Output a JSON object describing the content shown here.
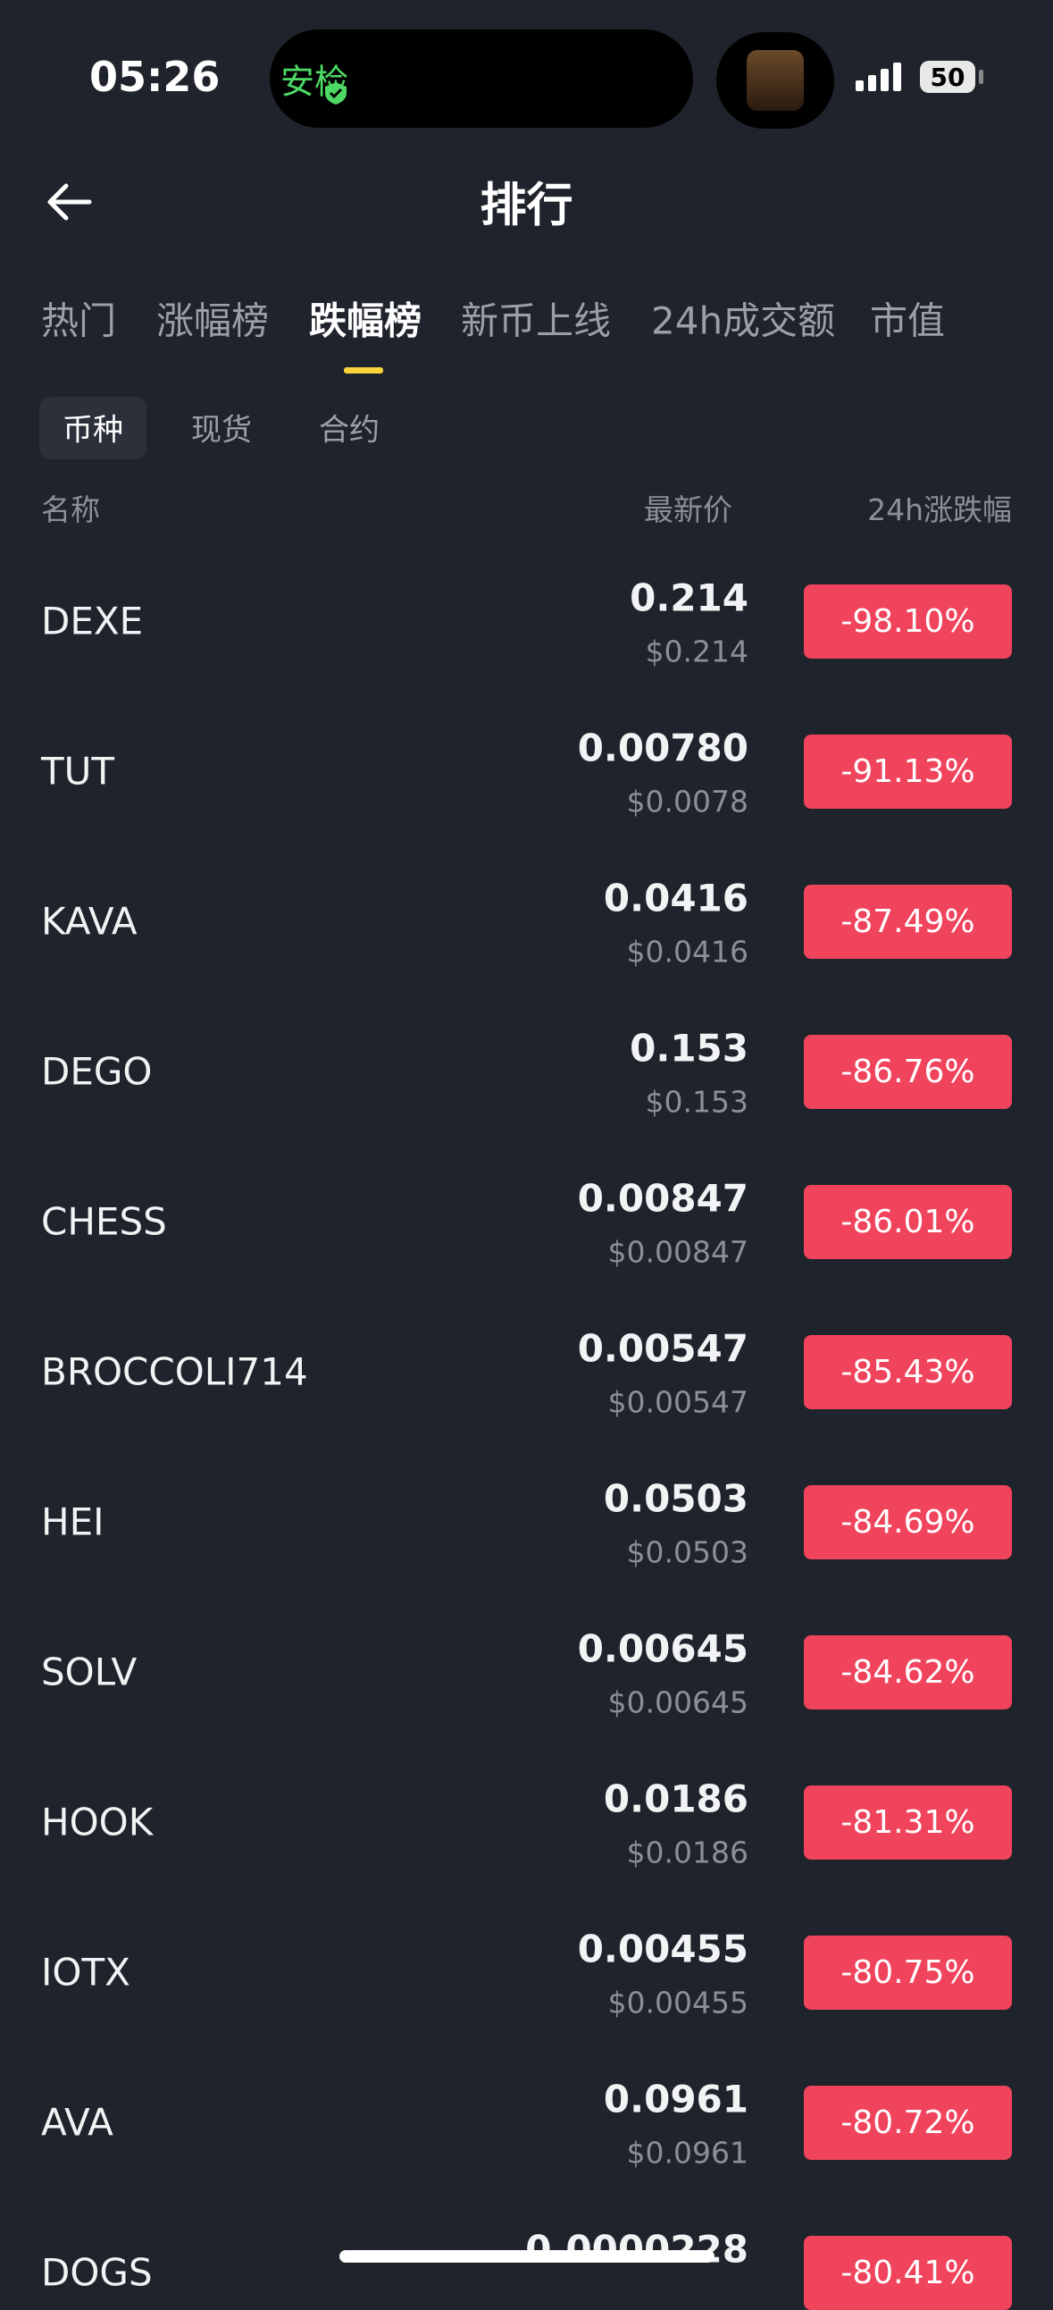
{
  "status_bar": {
    "time": "05:26",
    "security": "安检",
    "battery": "50"
  },
  "header": {
    "title": "排行"
  },
  "tabs": [
    "热门",
    "涨幅榜",
    "跌幅榜",
    "新币上线",
    "24h成交额",
    "市值"
  ],
  "subtabs": [
    "币种",
    "现货",
    "合约"
  ],
  "columns": [
    "名称",
    "最新价",
    "24h涨跌幅"
  ],
  "rows": [
    {
      "name": "DEXE",
      "price": "0.214",
      "usd": "$0.214",
      "change": "-98.10%"
    },
    {
      "name": "TUT",
      "price": "0.00780",
      "usd": "$0.0078",
      "change": "-91.13%"
    },
    {
      "name": "KAVA",
      "price": "0.0416",
      "usd": "$0.0416",
      "change": "-87.49%"
    },
    {
      "name": "DEGO",
      "price": "0.153",
      "usd": "$0.153",
      "change": "-86.76%"
    },
    {
      "name": "CHESS",
      "price": "0.00847",
      "usd": "$0.00847",
      "change": "-86.01%"
    },
    {
      "name": "BROCCOLI714",
      "price": "0.00547",
      "usd": "$0.00547",
      "change": "-85.43%"
    },
    {
      "name": "HEI",
      "price": "0.0503",
      "usd": "$0.0503",
      "change": "-84.69%"
    },
    {
      "name": "SOLV",
      "price": "0.00645",
      "usd": "$0.00645",
      "change": "-84.62%"
    },
    {
      "name": "HOOK",
      "price": "0.0186",
      "usd": "$0.0186",
      "change": "-81.31%"
    },
    {
      "name": "IOTX",
      "price": "0.00455",
      "usd": "$0.00455",
      "change": "-80.75%"
    },
    {
      "name": "AVA",
      "price": "0.0961",
      "usd": "$0.0961",
      "change": "-80.72%"
    },
    {
      "name": "DOGS",
      "price": "0.0000228",
      "change": "-80.41%"
    }
  ]
}
